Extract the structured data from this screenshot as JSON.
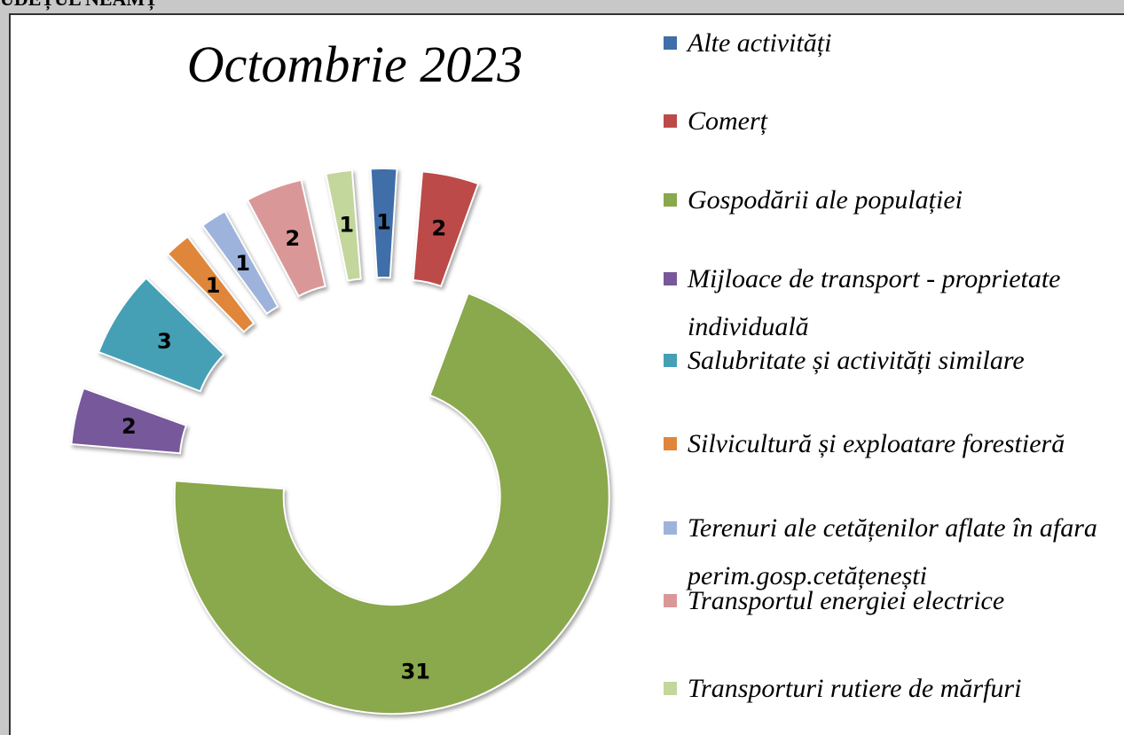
{
  "header": "UDEȚUL NEAMȚ",
  "chart_data": {
    "type": "donut",
    "title": "Octombrie 2023",
    "categories": [
      "Alte activități",
      "Comerț",
      "Gospodării ale populației",
      "Mijloace de transport - proprietate individuală",
      "Salubritate și activități similare",
      "Silvicultură și exploatare forestieră",
      "Terenuri ale cetățenilor aflate în afara perim.gosp.cetățenești",
      "Transportul energiei electrice",
      "Transporturi rutiere de mărfuri"
    ],
    "values": [
      1,
      2,
      31,
      2,
      3,
      1,
      1,
      2,
      1
    ],
    "colors": [
      "#3f6ea8",
      "#bb4a48",
      "#8aa84c",
      "#77589a",
      "#45a0b6",
      "#e0863a",
      "#9db3dc",
      "#d99897",
      "#c3d69c"
    ],
    "legend": "right"
  }
}
